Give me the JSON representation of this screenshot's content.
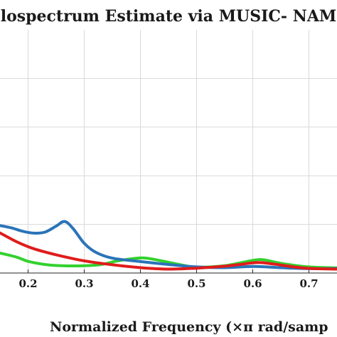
{
  "chart_data": {
    "type": "line",
    "title": "lospectrum Estimate via MUSIC- NAM",
    "xlabel": "Normalized Frequency  (×π rad/samp",
    "ylabel": "",
    "x_ticks": [
      "0.2",
      "0.3",
      "0.4",
      "0.5",
      "0.6",
      "0.7"
    ],
    "xlim": [
      0.15,
      0.75
    ],
    "ylim": [
      0,
      1
    ],
    "grid": true,
    "series": [
      {
        "color": "#2a74b8",
        "x": [
          0.15,
          0.17,
          0.19,
          0.21,
          0.23,
          0.25,
          0.265,
          0.28,
          0.3,
          0.32,
          0.35,
          0.4,
          0.45,
          0.5,
          0.55,
          0.6,
          0.65,
          0.7,
          0.75
        ],
        "y": [
          0.195,
          0.186,
          0.172,
          0.164,
          0.168,
          0.193,
          0.212,
          0.183,
          0.122,
          0.086,
          0.061,
          0.047,
          0.035,
          0.025,
          0.022,
          0.027,
          0.022,
          0.018,
          0.018
        ]
      },
      {
        "color": "#33d12e",
        "x": [
          0.15,
          0.18,
          0.2,
          0.23,
          0.26,
          0.3,
          0.33,
          0.36,
          0.4,
          0.42,
          0.45,
          0.48,
          0.5,
          0.55,
          0.6,
          0.62,
          0.65,
          0.7,
          0.75
        ],
        "y": [
          0.082,
          0.065,
          0.048,
          0.035,
          0.03,
          0.03,
          0.035,
          0.05,
          0.062,
          0.058,
          0.044,
          0.03,
          0.024,
          0.03,
          0.052,
          0.054,
          0.04,
          0.025,
          0.021
        ]
      },
      {
        "color": "#e11b1b",
        "x": [
          0.15,
          0.18,
          0.21,
          0.25,
          0.3,
          0.35,
          0.4,
          0.45,
          0.5,
          0.55,
          0.58,
          0.61,
          0.64,
          0.67,
          0.7,
          0.75
        ],
        "y": [
          0.165,
          0.128,
          0.1,
          0.075,
          0.05,
          0.034,
          0.022,
          0.016,
          0.02,
          0.028,
          0.036,
          0.043,
          0.036,
          0.026,
          0.019,
          0.016
        ]
      }
    ]
  }
}
